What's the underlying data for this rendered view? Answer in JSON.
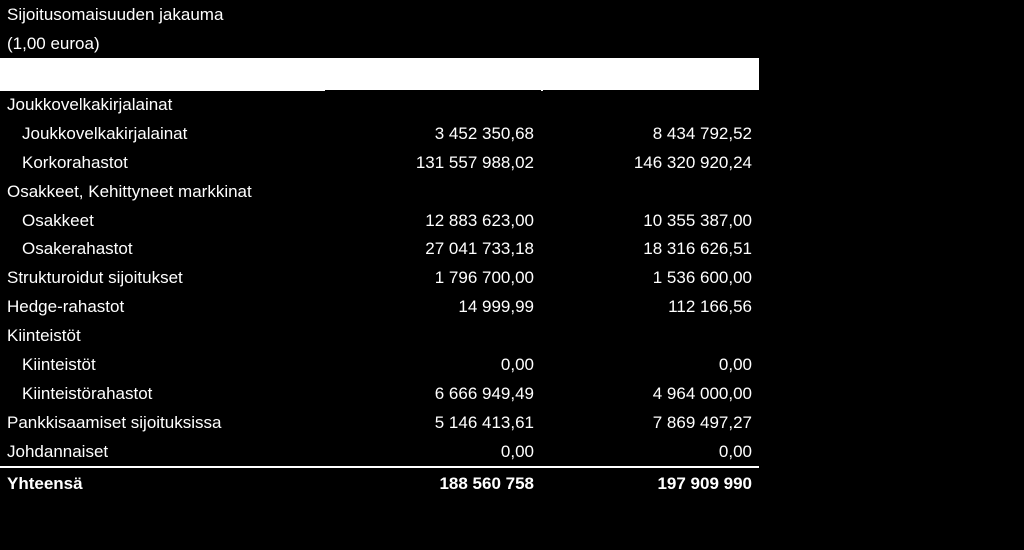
{
  "title": "Sijoitusomaisuuden jakauma",
  "subtitle": "(1,00 euroa)",
  "colors": {
    "background": "#000000",
    "text": "#ffffff",
    "header_band": "#ffffff"
  },
  "rows": [
    {
      "label": "Joukkovelkakirjalainat",
      "indent": false,
      "v1": "",
      "v2": ""
    },
    {
      "label": "Joukkovelkakirjalainat",
      "indent": true,
      "v1": "3 452 350,68",
      "v2": "8 434 792,52"
    },
    {
      "label": "Korkorahastot",
      "indent": true,
      "v1": "131 557 988,02",
      "v2": "146 320 920,24"
    },
    {
      "label": "Osakkeet, Kehittyneet markkinat",
      "indent": false,
      "v1": "",
      "v2": ""
    },
    {
      "label": "Osakkeet",
      "indent": true,
      "v1": "12 883 623,00",
      "v2": "10 355 387,00"
    },
    {
      "label": "Osakerahastot",
      "indent": true,
      "v1": "27 041 733,18",
      "v2": "18 316 626,51"
    },
    {
      "label": "Strukturoidut sijoitukset",
      "indent": false,
      "v1": "1 796 700,00",
      "v2": "1 536 600,00"
    },
    {
      "label": "Hedge-rahastot",
      "indent": false,
      "v1": "14 999,99",
      "v2": "112 166,56"
    },
    {
      "label": "Kiinteistöt",
      "indent": false,
      "v1": "",
      "v2": ""
    },
    {
      "label": "Kiinteistöt",
      "indent": true,
      "v1": "0,00",
      "v2": "0,00"
    },
    {
      "label": "Kiinteistörahastot",
      "indent": true,
      "v1": "6 666 949,49",
      "v2": "4 964 000,00"
    },
    {
      "label": "Pankkisaamiset sijoituksissa",
      "indent": false,
      "v1": "5 146 413,61",
      "v2": "7 869 497,27"
    },
    {
      "label": "Johdannaiset",
      "indent": false,
      "v1": "0,00",
      "v2": "0,00"
    }
  ],
  "total": {
    "label": "Yhteensä",
    "v1": "188 560 758",
    "v2": "197 909 990"
  }
}
